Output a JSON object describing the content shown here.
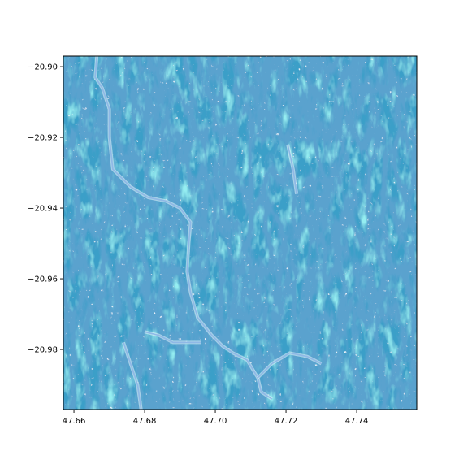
{
  "chart_data": {
    "type": "heatmap",
    "title": "",
    "xlabel": "",
    "ylabel": "",
    "xlim": [
      47.657,
      47.757
    ],
    "ylim": [
      -20.997,
      -20.897
    ],
    "x_ticks": [
      47.66,
      47.68,
      47.7,
      47.72,
      47.74
    ],
    "x_tick_labels": [
      "47.66",
      "47.68",
      "47.70",
      "47.72",
      "47.74"
    ],
    "y_ticks": [
      -20.9,
      -20.92,
      -20.94,
      -20.96,
      -20.98
    ],
    "y_tick_labels": [
      "−20.90",
      "−20.92",
      "−20.94",
      "−20.96",
      "−20.98"
    ],
    "grid": false,
    "legend": "none",
    "colors": {
      "base": "#3a9fc8",
      "dark": "#1a5f9e",
      "light": "#4fd6e0",
      "highlight": "#e6f6fb",
      "water": "#8fb8e6"
    },
    "rivers": [
      {
        "name": "",
        "points": [
          [
            47.6665,
            -20.897
          ],
          [
            47.666,
            -20.903
          ],
          [
            47.668,
            -20.906
          ],
          [
            47.67,
            -20.912
          ],
          [
            47.67,
            -20.92
          ],
          [
            47.671,
            -20.929
          ],
          [
            47.676,
            -20.934
          ],
          [
            47.681,
            -20.937
          ],
          [
            47.686,
            -20.938
          ],
          [
            47.69,
            -20.94
          ],
          [
            47.693,
            -20.944
          ],
          [
            47.6925,
            -20.95
          ],
          [
            47.692,
            -20.958
          ],
          [
            47.693,
            -20.964
          ],
          [
            47.695,
            -20.971
          ],
          [
            47.699,
            -20.976
          ],
          [
            47.702,
            -20.979
          ],
          [
            47.705,
            -20.981
          ],
          [
            47.709,
            -20.983
          ],
          [
            47.712,
            -20.988
          ],
          [
            47.713,
            -20.992
          ],
          [
            47.716,
            -20.994
          ]
        ]
      },
      {
        "name": "",
        "points": [
          [
            47.68,
            -20.975
          ],
          [
            47.684,
            -20.976
          ],
          [
            47.688,
            -20.978
          ],
          [
            47.692,
            -20.978
          ],
          [
            47.696,
            -20.978
          ]
        ]
      },
      {
        "name": "",
        "points": [
          [
            47.674,
            -20.978
          ],
          [
            47.676,
            -20.984
          ],
          [
            47.678,
            -20.99
          ],
          [
            47.679,
            -20.997
          ]
        ]
      },
      {
        "name": "",
        "points": [
          [
            47.712,
            -20.988
          ],
          [
            47.716,
            -20.984
          ],
          [
            47.721,
            -20.981
          ],
          [
            47.726,
            -20.982
          ],
          [
            47.73,
            -20.984
          ]
        ]
      },
      {
        "name": "",
        "points": [
          [
            47.7205,
            -20.922
          ],
          [
            47.722,
            -20.929
          ],
          [
            47.723,
            -20.936
          ]
        ]
      }
    ]
  }
}
